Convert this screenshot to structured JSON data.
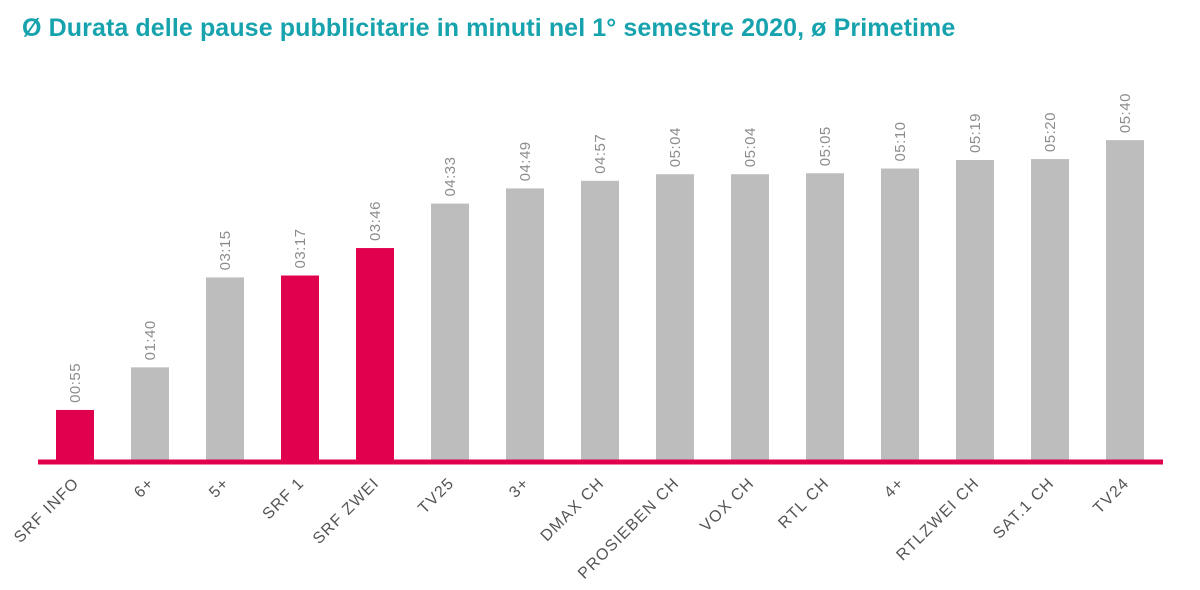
{
  "title": "Ø Durata delle pause pubblicitarie in minuti nel 1° semestre 2020, ø Primetime",
  "colors": {
    "title": "#16a3ad",
    "highlight": "#e0004d",
    "default": "#bdbdbd",
    "baseline": "#e0004d"
  },
  "chart_data": {
    "type": "bar",
    "title": "Ø Durata delle pause pubblicitarie in minuti nel 1° semestre 2020, ø Primetime",
    "xlabel": "",
    "ylabel": "",
    "grid": false,
    "legend": "none",
    "ylim": [
      0,
      6
    ],
    "unit": "minutes (mm:ss)",
    "categories": [
      "SRF INFO",
      "6+",
      "5+",
      "SRF 1",
      "SRF ZWEI",
      "TV25",
      "3+",
      "DMAX CH",
      "PROSIEBEN CH",
      "VOX CH",
      "RTL CH",
      "4+",
      "RTLZWEI CH",
      "SAT.1 CH",
      "TV24"
    ],
    "values": [
      0.9167,
      1.6667,
      3.25,
      3.2833,
      3.7667,
      4.55,
      4.8167,
      4.95,
      5.0667,
      5.0667,
      5.0833,
      5.1667,
      5.3167,
      5.3333,
      5.6667
    ],
    "labels": [
      "00:55",
      "01:40",
      "03:15",
      "03:17",
      "03:46",
      "04:33",
      "04:49",
      "04:57",
      "05:04",
      "05:04",
      "05:05",
      "05:10",
      "05:19",
      "05:20",
      "05:40"
    ],
    "highlighted": [
      true,
      false,
      false,
      true,
      true,
      false,
      false,
      false,
      false,
      false,
      false,
      false,
      false,
      false,
      false
    ]
  }
}
